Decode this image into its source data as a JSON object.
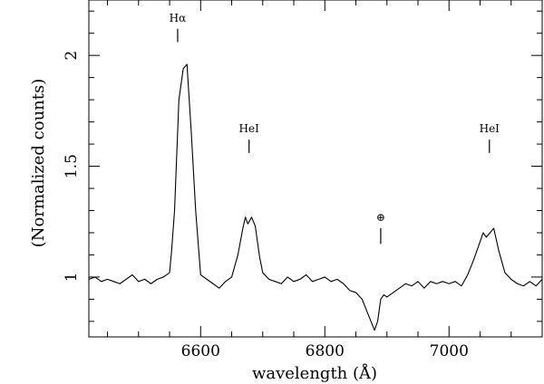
{
  "chart_data": {
    "type": "line",
    "title": "",
    "xlabel": "wavelength (Å)",
    "ylabel": "(Normalized counts)",
    "xlim": [
      6420,
      7150
    ],
    "ylim": [
      0.73,
      2.25
    ],
    "xticks": [
      6600,
      6800,
      7000
    ],
    "xtick_labels": [
      "6600",
      "6800",
      "7000"
    ],
    "yticks": [
      1,
      1.5,
      2
    ],
    "ytick_labels": [
      "1",
      "1.5",
      "2"
    ],
    "grid": false,
    "legend": "none",
    "line_color": "#000000",
    "annotations": [
      {
        "label": "Hα",
        "x": 6563,
        "y_tick": [
          2.06,
          2.12
        ]
      },
      {
        "label": "HeI",
        "x": 6678,
        "y_tick": [
          1.56,
          1.62
        ]
      },
      {
        "label": "⊕",
        "x": 6890,
        "y_tick": [
          1.15,
          1.22
        ]
      },
      {
        "label": "HeI",
        "x": 7065,
        "y_tick": [
          1.56,
          1.62
        ]
      }
    ],
    "series": [
      {
        "x": [
          6420,
          6430,
          6440,
          6450,
          6460,
          6470,
          6480,
          6490,
          6500,
          6510,
          6520,
          6530,
          6540,
          6550,
          6553,
          6558,
          6565,
          6572,
          6578,
          6585,
          6592,
          6600,
          6610,
          6620,
          6630,
          6640,
          6650,
          6660,
          6668,
          6672,
          6676,
          6682,
          6688,
          6695,
          6700,
          6710,
          6720,
          6730,
          6740,
          6750,
          6760,
          6770,
          6780,
          6790,
          6800,
          6810,
          6820,
          6830,
          6840,
          6850,
          6860,
          6870,
          6880,
          6885,
          6890,
          6895,
          6900,
          6910,
          6920,
          6930,
          6940,
          6950,
          6960,
          6970,
          6980,
          6990,
          7000,
          7010,
          7020,
          7030,
          7040,
          7050,
          7055,
          7060,
          7066,
          7072,
          7080,
          7090,
          7100,
          7110,
          7120,
          7130,
          7140,
          7150
        ],
        "y": [
          0.99,
          1.0,
          0.98,
          0.99,
          0.98,
          0.97,
          0.99,
          1.01,
          0.98,
          0.99,
          0.97,
          0.99,
          1.0,
          1.02,
          1.11,
          1.3,
          1.8,
          1.94,
          1.96,
          1.65,
          1.3,
          1.01,
          0.99,
          0.97,
          0.95,
          0.98,
          1.0,
          1.1,
          1.22,
          1.27,
          1.24,
          1.27,
          1.23,
          1.09,
          1.02,
          0.99,
          0.98,
          0.97,
          1.0,
          0.98,
          0.99,
          1.01,
          0.98,
          0.99,
          1.0,
          0.98,
          0.99,
          0.97,
          0.94,
          0.93,
          0.9,
          0.83,
          0.76,
          0.8,
          0.9,
          0.92,
          0.91,
          0.93,
          0.95,
          0.97,
          0.96,
          0.98,
          0.95,
          0.98,
          0.97,
          0.98,
          0.97,
          0.98,
          0.96,
          1.01,
          1.08,
          1.16,
          1.2,
          1.18,
          1.2,
          1.22,
          1.12,
          1.02,
          0.99,
          0.97,
          0.96,
          0.98,
          0.96,
          0.99
        ]
      }
    ]
  }
}
